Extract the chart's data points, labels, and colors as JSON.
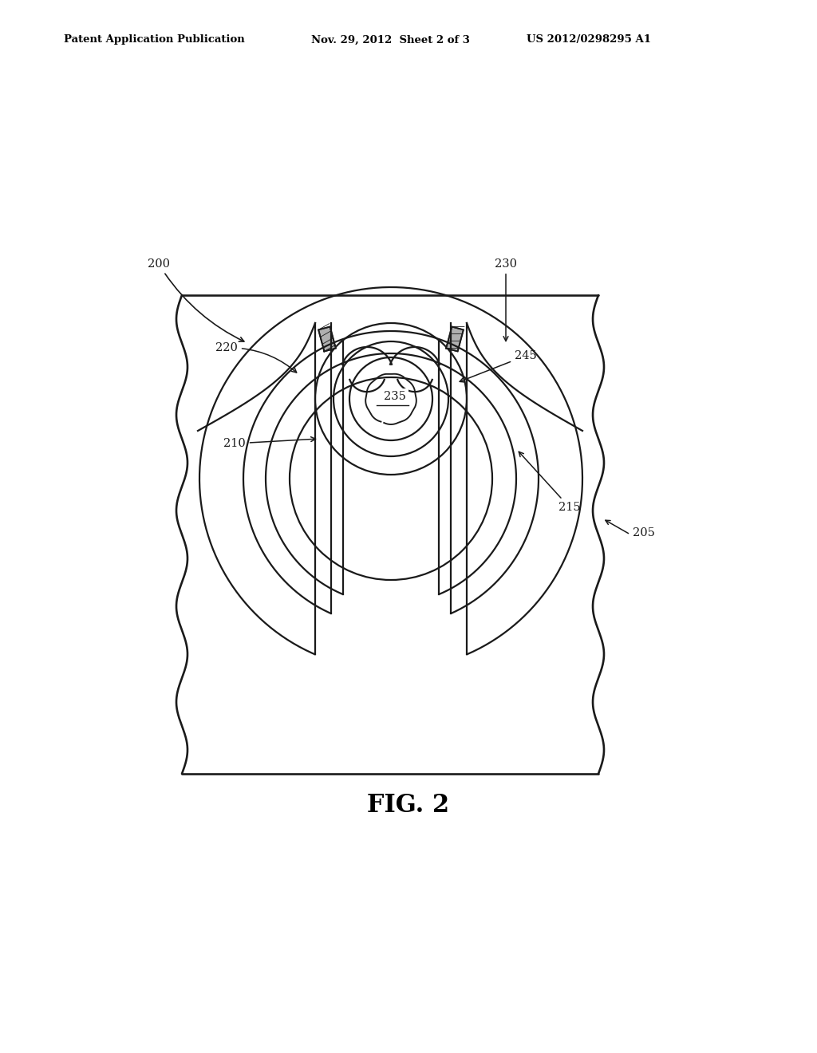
{
  "background_color": "#ffffff",
  "header_left": "Patent Application Publication",
  "header_mid": "Nov. 29, 2012  Sheet 2 of 3",
  "header_right": "US 2012/0298295 A1",
  "fig_label": "FIG. 2",
  "line_color": "#1a1a1a",
  "line_width": 1.6
}
